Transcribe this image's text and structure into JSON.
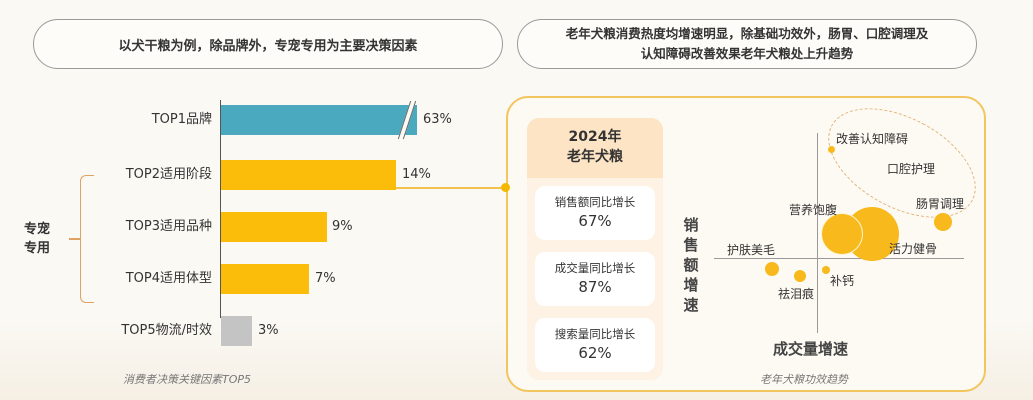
{
  "headers": {
    "left": "以犬干粮为例，除品牌外，专宠专用为主要决策因素",
    "right_line1": "老年犬粮消费热度均增速明显，除基础功效外，肠胃、口腔调理及",
    "right_line2": "认知障碍改善效果老年犬粮处上升趋势"
  },
  "group_label_line1": "专宠",
  "group_label_line2": "专用",
  "stats": {
    "title_line1": "2024年",
    "title_line2": "老年犬粮",
    "items": [
      {
        "label": "销售额同比增长",
        "value": "67%"
      },
      {
        "label": "成交量同比增长",
        "value": "87%"
      },
      {
        "label": "搜索量同比增长",
        "value": "62%"
      }
    ]
  },
  "colors": {
    "brand_bar": "#4aa9bf",
    "factor_bar": "#fbbd0a",
    "other_bar": "#c4c4c4",
    "bubble": "#f7b91c",
    "accent_border": "#f2c55e"
  },
  "chart_data": [
    {
      "type": "bar",
      "orientation": "horizontal",
      "title": "消费者决策关键因素TOP5",
      "categories": [
        "TOP1品牌",
        "TOP2适用阶段",
        "TOP3适用品种",
        "TOP4适用体型",
        "TOP5物流/时效"
      ],
      "values": [
        63,
        14,
        9,
        7,
        3
      ],
      "value_labels": [
        "63%",
        "14%",
        "9%",
        "7%",
        "3%"
      ],
      "unit": "%",
      "axis_break_on": "TOP1品牌",
      "annotations": [
        {
          "label": "专宠专用",
          "spans": [
            "TOP2适用阶段",
            "TOP3适用品种",
            "TOP4适用体型"
          ]
        }
      ],
      "xlabel": "",
      "ylabel": ""
    },
    {
      "type": "scatter",
      "subtype": "bubble",
      "title": "老年犬粮功效趋势",
      "xlabel": "成交量增速",
      "ylabel": "销售额增速",
      "quadrant_axes": true,
      "points": [
        {
          "label": "改善认知障碍",
          "x": 0.1,
          "y": 1.4,
          "size": "very small"
        },
        {
          "label": "口腔护理",
          "x": 1.0,
          "y": 1.0,
          "size": "none visible"
        },
        {
          "label": "肠胃调理",
          "x": 1.6,
          "y": 0.7,
          "size": "small"
        },
        {
          "label": "营养饱腹",
          "x": 0.25,
          "y": 0.35,
          "size": "large"
        },
        {
          "label": "活力健骨",
          "x": 0.55,
          "y": 0.3,
          "size": "largest"
        },
        {
          "label": "护肤美毛",
          "x": -0.55,
          "y": -0.1,
          "size": "small"
        },
        {
          "label": "祛泪痕",
          "x": -0.2,
          "y": -0.2,
          "size": "small"
        },
        {
          "label": "补钙",
          "x": 0.05,
          "y": -0.1,
          "size": "very small"
        }
      ],
      "annotations": [
        {
          "type": "dashed-ellipse",
          "encloses": [
            "改善认知障碍",
            "口腔护理",
            "肠胃调理"
          ]
        }
      ]
    }
  ]
}
